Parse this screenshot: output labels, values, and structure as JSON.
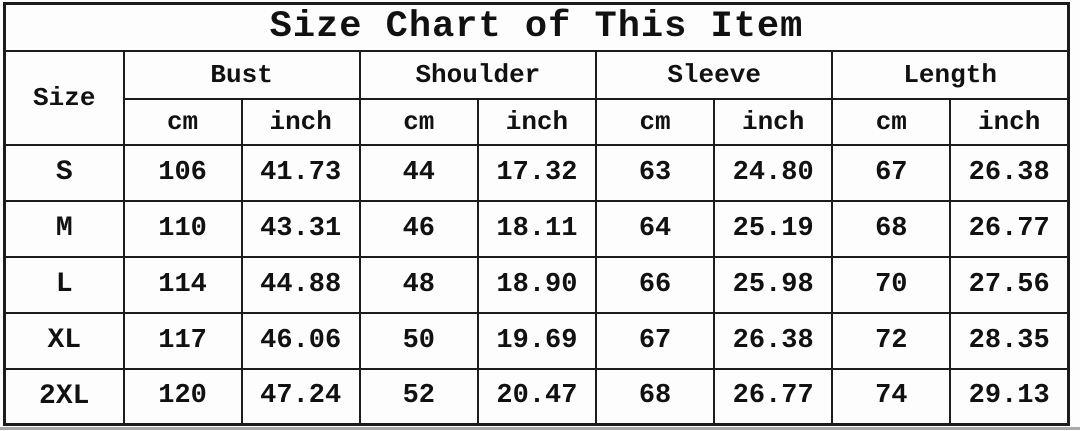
{
  "title": "Size Chart of This Item",
  "table": {
    "size_label": "Size",
    "groups": [
      "Bust",
      "Shoulder",
      "Sleeve",
      "Length"
    ],
    "units": [
      "cm",
      "inch"
    ],
    "rows": [
      {
        "size": "S",
        "values": [
          "106",
          "41.73",
          "44",
          "17.32",
          "63",
          "24.80",
          "67",
          "26.38"
        ]
      },
      {
        "size": "M",
        "values": [
          "110",
          "43.31",
          "46",
          "18.11",
          "64",
          "25.19",
          "68",
          "26.77"
        ]
      },
      {
        "size": "L",
        "values": [
          "114",
          "44.88",
          "48",
          "18.90",
          "66",
          "25.98",
          "70",
          "27.56"
        ]
      },
      {
        "size": "XL",
        "values": [
          "117",
          "46.06",
          "50",
          "19.69",
          "67",
          "26.38",
          "72",
          "28.35"
        ]
      },
      {
        "size": "2XL",
        "values": [
          "120",
          "47.24",
          "52",
          "20.47",
          "68",
          "26.77",
          "74",
          "29.13"
        ]
      }
    ]
  },
  "colors": {
    "background": "#fdfdfd",
    "grid_border": "#1c1c1c",
    "text": "#111111",
    "bottom_line": "#a9a9a9"
  },
  "chart_data": {
    "type": "table",
    "title": "Size Chart of This Item",
    "columns": [
      "Size",
      "Bust cm",
      "Bust inch",
      "Shoulder cm",
      "Shoulder inch",
      "Sleeve cm",
      "Sleeve inch",
      "Length cm",
      "Length inch"
    ],
    "rows": [
      [
        "S",
        106,
        41.73,
        44,
        17.32,
        63,
        24.8,
        67,
        26.38
      ],
      [
        "M",
        110,
        43.31,
        46,
        18.11,
        64,
        25.19,
        68,
        26.77
      ],
      [
        "L",
        114,
        44.88,
        48,
        18.9,
        66,
        25.98,
        70,
        27.56
      ],
      [
        "XL",
        117,
        46.06,
        50,
        19.69,
        67,
        26.38,
        72,
        28.35
      ],
      [
        "2XL",
        120,
        47.24,
        52,
        20.47,
        68,
        26.77,
        74,
        29.13
      ]
    ],
    "layout": {
      "grid": true,
      "header_group_columns": [
        "Bust",
        "Shoulder",
        "Sleeve",
        "Length"
      ],
      "units_per_group": [
        "cm",
        "inch"
      ]
    }
  }
}
